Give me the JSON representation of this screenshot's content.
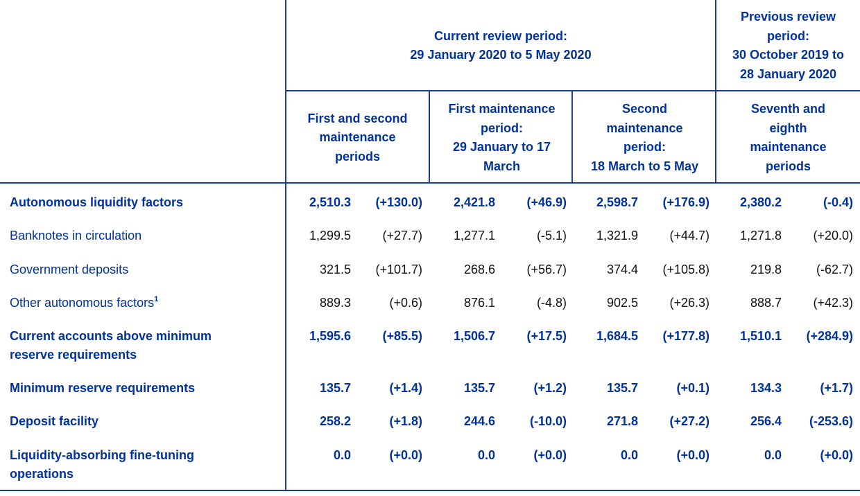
{
  "header": {
    "current": [
      "Current review period:",
      "29 January 2020 to 5 May 2020"
    ],
    "previous": [
      "Previous review",
      "period:",
      "30 October 2019 to",
      "28 January 2020"
    ],
    "columns": [
      [
        "First and second",
        "maintenance",
        "periods"
      ],
      [
        "First maintenance",
        "period:",
        "29 January to 17",
        "March"
      ],
      [
        "Second",
        "maintenance",
        "period:",
        "18 March to 5 May"
      ],
      [
        "Seventh and",
        "eighth",
        "maintenance",
        "periods"
      ]
    ]
  },
  "table": {
    "rows": [
      {
        "label": "Autonomous liquidity factors",
        "bold": true,
        "cells": [
          "2,510.3",
          "(+130.0)",
          "2,421.8",
          "(+46.9)",
          "2,598.7",
          "(+176.9)",
          "2,380.2",
          "(-0.4)"
        ]
      },
      {
        "label": "Banknotes in circulation",
        "bold": false,
        "cells": [
          "1,299.5",
          "(+27.7)",
          "1,277.1",
          "(-5.1)",
          "1,321.9",
          "(+44.7)",
          "1,271.8",
          "(+20.0)"
        ]
      },
      {
        "label": "Government deposits",
        "bold": false,
        "cells": [
          "321.5",
          "(+101.7)",
          "268.6",
          "(+56.7)",
          "374.4",
          "(+105.8)",
          "219.8",
          "(-62.7)"
        ]
      },
      {
        "label": "Other autonomous factors",
        "note": "1",
        "bold": false,
        "cells": [
          "889.3",
          "(+0.6)",
          "876.1",
          "(-4.8)",
          "902.5",
          "(+26.3)",
          "888.7",
          "(+42.3)"
        ]
      },
      {
        "label": "Current accounts above minimum reserve requirements",
        "bold": true,
        "cells": [
          "1,595.6",
          "(+85.5)",
          "1,506.7",
          "(+17.5)",
          "1,684.5",
          "(+177.8)",
          "1,510.1",
          "(+284.9)"
        ]
      },
      {
        "label": "Minimum reserve requirements",
        "bold": true,
        "cells": [
          "135.7",
          "(+1.4)",
          "135.7",
          "(+1.2)",
          "135.7",
          "(+0.1)",
          "134.3",
          "(+1.7)"
        ]
      },
      {
        "label": "Deposit facility",
        "bold": true,
        "cells": [
          "258.2",
          "(+1.8)",
          "244.6",
          "(-10.0)",
          "271.8",
          "(+27.2)",
          "256.4",
          "(-253.6)"
        ]
      },
      {
        "label": "Liquidity-absorbing fine-tuning operations",
        "bold": true,
        "cells": [
          "0.0",
          "(+0.0)",
          "0.0",
          "(+0.0)",
          "0.0",
          "(+0.0)",
          "0.0",
          "(+0.0)"
        ]
      }
    ]
  }
}
